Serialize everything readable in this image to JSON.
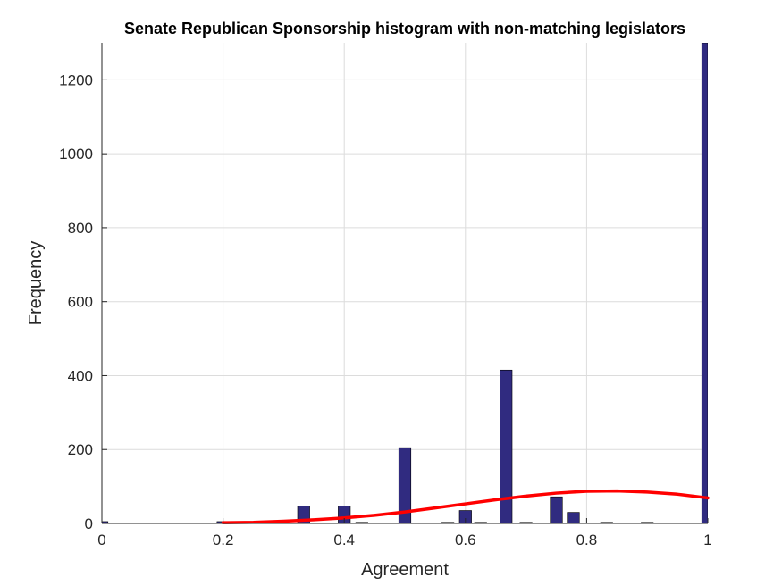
{
  "chart_data": {
    "type": "bar",
    "title": "Senate Republican Sponsorship histogram with non-matching legislators",
    "xlabel": "Agreement",
    "ylabel": "Frequency",
    "xlim": [
      0,
      1
    ],
    "ylim": [
      0,
      1300
    ],
    "xticks": [
      0,
      0.2,
      0.4,
      0.6,
      0.8,
      1
    ],
    "xtick_labels": [
      "0",
      "0.2",
      "0.4",
      "0.6",
      "0.8",
      "1"
    ],
    "yticks": [
      0,
      200,
      400,
      600,
      800,
      1000,
      1200
    ],
    "ytick_labels": [
      "0",
      "200",
      "400",
      "600",
      "800",
      "1000",
      "1200"
    ],
    "grid": true,
    "bin_width": 0.02,
    "bins": [
      {
        "x": 0.0,
        "value": 5
      },
      {
        "x": 0.2,
        "value": 5
      },
      {
        "x": 0.333,
        "value": 47
      },
      {
        "x": 0.4,
        "value": 47
      },
      {
        "x": 0.429,
        "value": 3
      },
      {
        "x": 0.5,
        "value": 205
      },
      {
        "x": 0.571,
        "value": 3
      },
      {
        "x": 0.6,
        "value": 35
      },
      {
        "x": 0.625,
        "value": 3
      },
      {
        "x": 0.667,
        "value": 415
      },
      {
        "x": 0.7,
        "value": 3
      },
      {
        "x": 0.75,
        "value": 72
      },
      {
        "x": 0.778,
        "value": 30
      },
      {
        "x": 0.833,
        "value": 3
      },
      {
        "x": 0.9,
        "value": 3
      },
      {
        "x": 1.0,
        "value": 1300
      }
    ],
    "fit_curve": {
      "type": "line",
      "x": [
        0.2,
        0.25,
        0.3,
        0.35,
        0.4,
        0.45,
        0.5,
        0.55,
        0.6,
        0.65,
        0.7,
        0.75,
        0.8,
        0.85,
        0.9,
        0.95,
        1.0
      ],
      "values": [
        2,
        3,
        6,
        10,
        15,
        22,
        31,
        42,
        53,
        64,
        74,
        82,
        87,
        88,
        85,
        79,
        69
      ]
    },
    "colors": {
      "bar_fill": "#302b80",
      "bar_edge": "#000000",
      "curve": "#ff0000",
      "grid": "#dcdcdc",
      "axis": "#262626"
    }
  }
}
